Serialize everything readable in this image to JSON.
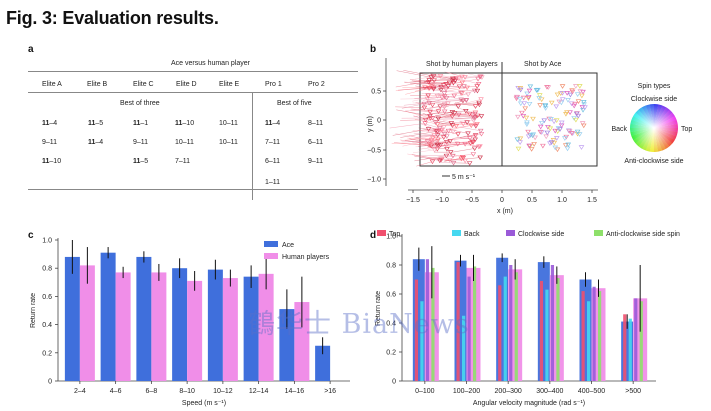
{
  "figure_title": "Fig. 3: Evaluation results.",
  "watermark": "鶴华士 BiaNews",
  "panels": {
    "a": {
      "letter": "a",
      "header": "Ace versus human player",
      "columns": [
        "Elite A",
        "Elite B",
        "Elite C",
        "Elite D",
        "Elite E",
        "Pro 1",
        "Pro 2"
      ],
      "best_of_three": "Best of three",
      "best_of_five": "Best of five",
      "elite_scores": [
        [
          {
            "b": "11",
            "r": "–4"
          },
          {
            "b": "11",
            "r": "–5"
          },
          {
            "b": "11",
            "r": "–1"
          },
          {
            "b": "11",
            "r": "–10"
          },
          {
            "b": "",
            "r": "10–11"
          }
        ],
        [
          {
            "b": "",
            "r": "9–11"
          },
          {
            "b": "11",
            "r": "–4"
          },
          {
            "b": "",
            "r": "9–11"
          },
          {
            "b": "",
            "r": "10–11"
          },
          {
            "b": "",
            "r": "10–11"
          }
        ],
        [
          {
            "b": "11",
            "r": "–10"
          },
          {
            "b": "",
            "r": ""
          },
          {
            "b": "11",
            "r": "–5"
          },
          {
            "b": "",
            "r": "7–11"
          },
          {
            "b": "",
            "r": ""
          }
        ]
      ],
      "pro_scores": [
        [
          {
            "b": "11",
            "r": "–4"
          },
          {
            "b": "",
            "r": "8–11"
          }
        ],
        [
          {
            "b": "",
            "r": "7–11"
          },
          {
            "b": "",
            "r": "6–11"
          }
        ],
        [
          {
            "b": "",
            "r": "6–11"
          },
          {
            "b": "",
            "r": "9–11"
          }
        ],
        [
          {
            "b": "",
            "r": "1–11"
          },
          {
            "b": "",
            "r": ""
          }
        ]
      ]
    },
    "b": {
      "letter": "b",
      "left_label": "Shot by human players",
      "right_label": "Shot by Ace",
      "scale_label": "5 m s⁻¹",
      "xlabel": "x (m)",
      "ylabel": "y (m)",
      "xticks": [
        "−1.5",
        "−1.0",
        "−0.5",
        "0",
        "0.5",
        "1.0",
        "1.5"
      ],
      "yticks": [
        "0.5",
        "0",
        "−0.5",
        "−1.0"
      ],
      "legend": {
        "title": "Spin types",
        "top": "Clockwise side",
        "right": "Top",
        "left": "Back",
        "bottom": "Anti-clockwise side"
      }
    },
    "c": {
      "letter": "c"
    },
    "d": {
      "letter": "d"
    }
  },
  "chart_data": [
    {
      "id": "c",
      "type": "bar",
      "title": "",
      "xlabel": "Speed (m s⁻¹)",
      "ylabel": "Return rate",
      "ylim": [
        0,
        1.0
      ],
      "yticks": [
        "0",
        "0.2",
        "0.4",
        "0.6",
        "0.8",
        "1.0"
      ],
      "categories": [
        "2–4",
        "4–6",
        "6–8",
        "8–10",
        "10–12",
        "12–14",
        "14–16",
        ">16"
      ],
      "legend_position": "top-right",
      "series": [
        {
          "name": "Ace",
          "color": "#3f6fdc",
          "values": [
            0.88,
            0.91,
            0.88,
            0.8,
            0.79,
            0.74,
            0.51,
            0.25
          ],
          "err": [
            0.12,
            0.04,
            0.04,
            0.07,
            0.07,
            0.08,
            0.14,
            0.06
          ]
        },
        {
          "name": "Human players",
          "color": "#f08ee8",
          "values": [
            0.82,
            0.77,
            0.77,
            0.71,
            0.73,
            0.76,
            0.56,
            null
          ],
          "err": [
            0.13,
            0.04,
            0.06,
            0.07,
            0.06,
            0.11,
            0.18,
            null
          ]
        }
      ]
    },
    {
      "id": "d",
      "type": "bar",
      "title": "",
      "xlabel": "Angular velocity magnitude (rad s⁻¹)",
      "ylabel": "Return rate",
      "ylim": [
        0,
        1.0
      ],
      "yticks": [
        "0",
        "0.2",
        "0.4",
        "0.6",
        "0.8",
        "1.0"
      ],
      "categories": [
        "0–100",
        "100–200",
        "200–300",
        "300–400",
        "400–500",
        ">500"
      ],
      "legend_position": "top",
      "overall": {
        "Ace": {
          "color": "#3f6fdc",
          "values": [
            0.84,
            0.83,
            0.85,
            0.82,
            0.7,
            0.41
          ],
          "err": [
            0.08,
            0.04,
            0.03,
            0.04,
            0.05,
            0.05
          ]
        },
        "Human": {
          "color": "#f08ee8",
          "values": [
            0.75,
            0.78,
            0.77,
            0.73,
            0.64,
            0.57
          ],
          "err": [
            0.18,
            0.09,
            0.07,
            0.06,
            0.06,
            0.23
          ]
        }
      },
      "series": [
        {
          "name": "Top",
          "color": "#f0506e",
          "values": [
            0.7,
            0.82,
            0.66,
            0.69,
            0.62,
            0.46
          ]
        },
        {
          "name": "Back",
          "color": "#46d8f0",
          "values": [
            0.55,
            0.45,
            0.72,
            0.63,
            0.55,
            0.43
          ]
        },
        {
          "name": "Clockwise side",
          "color": "#9a5ad8",
          "values": [
            0.84,
            0.72,
            0.8,
            0.8,
            0.65,
            0.57
          ]
        },
        {
          "name": "Anti-clockwise side spin",
          "color": "#8ee06a",
          "values": [
            0.78,
            0.79,
            0.75,
            0.71,
            0.62,
            0.55
          ]
        }
      ]
    }
  ]
}
